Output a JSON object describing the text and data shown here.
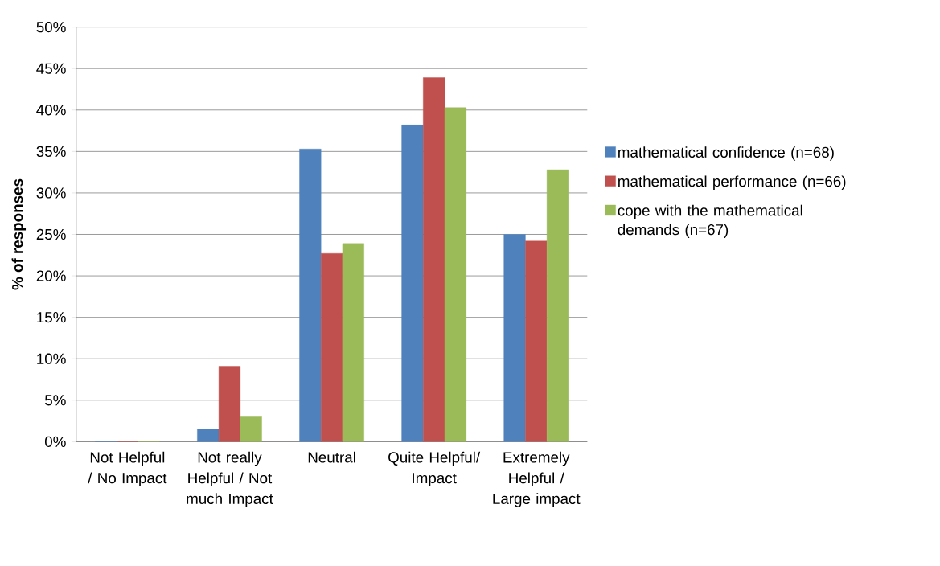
{
  "chart_data": {
    "type": "bar",
    "ylabel": "% of responses",
    "categories": [
      "Not Helpful / No Impact",
      "Not really Helpful / Not much Impact",
      "Neutral",
      "Quite Helpful/ Impact",
      "Extremely Helpful / Large impact"
    ],
    "series": [
      {
        "name": "mathematical confidence (n=68)",
        "color": "#4f81bd",
        "values": [
          0,
          1.5,
          35.3,
          38.2,
          25.0
        ]
      },
      {
        "name": "mathematical performance (n=66)",
        "color": "#c0504d",
        "values": [
          0,
          9.1,
          22.7,
          43.9,
          24.2
        ]
      },
      {
        "name": "cope with the mathematical demands (n=67)",
        "color": "#9bbb59",
        "values": [
          0,
          3.0,
          23.9,
          40.3,
          32.8
        ]
      }
    ],
    "ylim": [
      0,
      50
    ],
    "yticks": [
      {
        "value": 0,
        "label": "0%"
      },
      {
        "value": 5,
        "label": "5%"
      },
      {
        "value": 10,
        "label": "10%"
      },
      {
        "value": 15,
        "label": "15%"
      },
      {
        "value": 20,
        "label": "20%"
      },
      {
        "value": 25,
        "label": "25%"
      },
      {
        "value": 30,
        "label": "30%"
      },
      {
        "value": 35,
        "label": "35%"
      },
      {
        "value": 40,
        "label": "40%"
      },
      {
        "value": 45,
        "label": "45%"
      },
      {
        "value": 50,
        "label": "50%"
      }
    ],
    "grid": "y",
    "legend": "right"
  }
}
